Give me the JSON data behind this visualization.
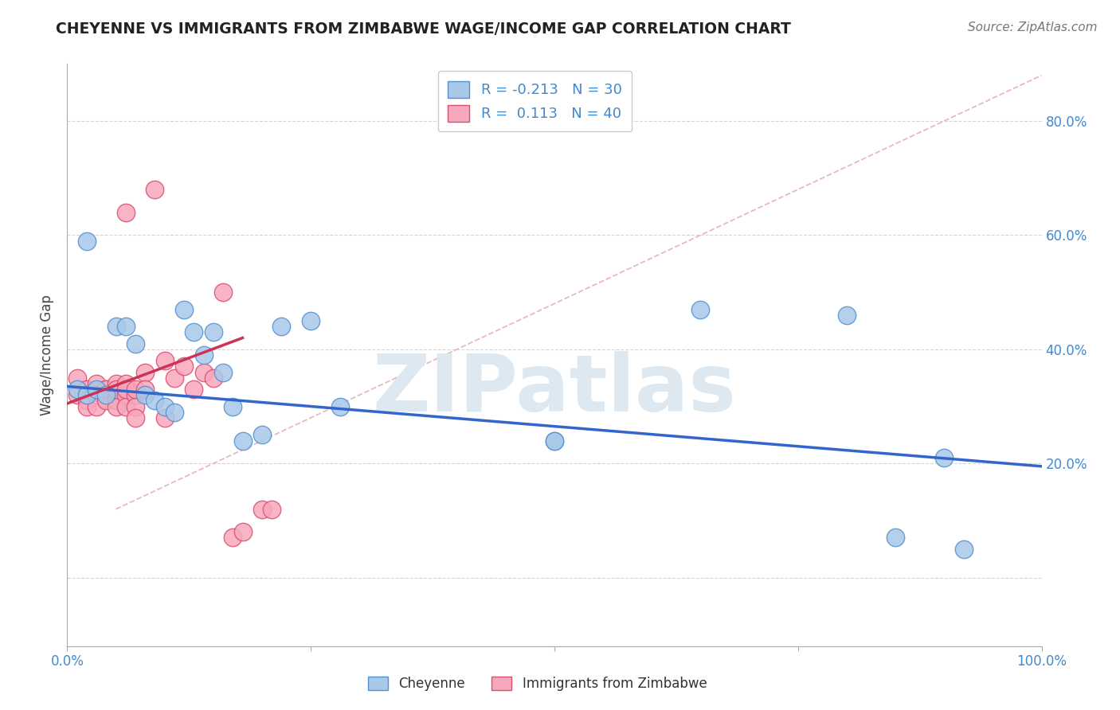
{
  "title": "CHEYENNE VS IMMIGRANTS FROM ZIMBABWE WAGE/INCOME GAP CORRELATION CHART",
  "source": "Source: ZipAtlas.com",
  "ylabel": "Wage/Income Gap",
  "xlim": [
    0.0,
    1.0
  ],
  "ylim": [
    -0.12,
    0.9
  ],
  "yticks": [
    0.0,
    0.2,
    0.4,
    0.6,
    0.8
  ],
  "ytick_labels_right": [
    "20.0%",
    "40.0%",
    "60.0%",
    "80.0%"
  ],
  "yticks_right": [
    0.2,
    0.4,
    0.6,
    0.8
  ],
  "xtick_positions": [
    0.0,
    0.25,
    0.5,
    0.75,
    1.0
  ],
  "xtick_labels": [
    "0.0%",
    "",
    "",
    "",
    "100.0%"
  ],
  "legend_label1": "R = -0.213   N = 30",
  "legend_label2": "R =  0.113   N = 40",
  "cheyenne_color": "#a8c8e8",
  "zimbabwe_color": "#f8a8bc",
  "cheyenne_edge": "#5590d0",
  "zimbabwe_edge": "#d85070",
  "trend_blue": "#3366cc",
  "trend_pink": "#cc3355",
  "ref_line_color": "#e0a0b0",
  "grid_color": "#cccccc",
  "label_color": "#4488cc",
  "watermark_color": "#dde8f0",
  "background": "#ffffff",
  "cheyenne_x": [
    0.01,
    0.02,
    0.02,
    0.03,
    0.04,
    0.05,
    0.06,
    0.07,
    0.08,
    0.09,
    0.1,
    0.11,
    0.12,
    0.13,
    0.14,
    0.15,
    0.16,
    0.17,
    0.18,
    0.2,
    0.22,
    0.25,
    0.28,
    0.5,
    0.65,
    0.8,
    0.9,
    0.92,
    0.5,
    0.85
  ],
  "cheyenne_y": [
    0.33,
    0.59,
    0.32,
    0.33,
    0.32,
    0.44,
    0.44,
    0.41,
    0.32,
    0.31,
    0.3,
    0.29,
    0.47,
    0.43,
    0.39,
    0.43,
    0.36,
    0.3,
    0.24,
    0.25,
    0.44,
    0.45,
    0.3,
    0.24,
    0.47,
    0.46,
    0.21,
    0.05,
    0.24,
    0.07
  ],
  "zimbabwe_x": [
    0.01,
    0.01,
    0.02,
    0.02,
    0.02,
    0.03,
    0.03,
    0.03,
    0.04,
    0.04,
    0.04,
    0.05,
    0.05,
    0.05,
    0.05,
    0.05,
    0.06,
    0.06,
    0.06,
    0.06,
    0.06,
    0.07,
    0.07,
    0.07,
    0.07,
    0.08,
    0.08,
    0.09,
    0.1,
    0.1,
    0.11,
    0.12,
    0.13,
    0.14,
    0.15,
    0.16,
    0.17,
    0.18,
    0.2,
    0.21
  ],
  "zimbabwe_y": [
    0.35,
    0.32,
    0.33,
    0.31,
    0.3,
    0.34,
    0.32,
    0.3,
    0.33,
    0.31,
    0.33,
    0.34,
    0.32,
    0.31,
    0.3,
    0.33,
    0.34,
    0.32,
    0.3,
    0.33,
    0.64,
    0.32,
    0.3,
    0.28,
    0.33,
    0.36,
    0.33,
    0.68,
    0.28,
    0.38,
    0.35,
    0.37,
    0.33,
    0.36,
    0.35,
    0.5,
    0.07,
    0.08,
    0.12,
    0.12
  ],
  "blue_trend": [
    0.0,
    1.0,
    0.335,
    0.195
  ],
  "pink_trend": [
    0.0,
    0.18,
    0.305,
    0.42
  ],
  "ref_diag": [
    0.05,
    1.0,
    0.12,
    0.88
  ]
}
